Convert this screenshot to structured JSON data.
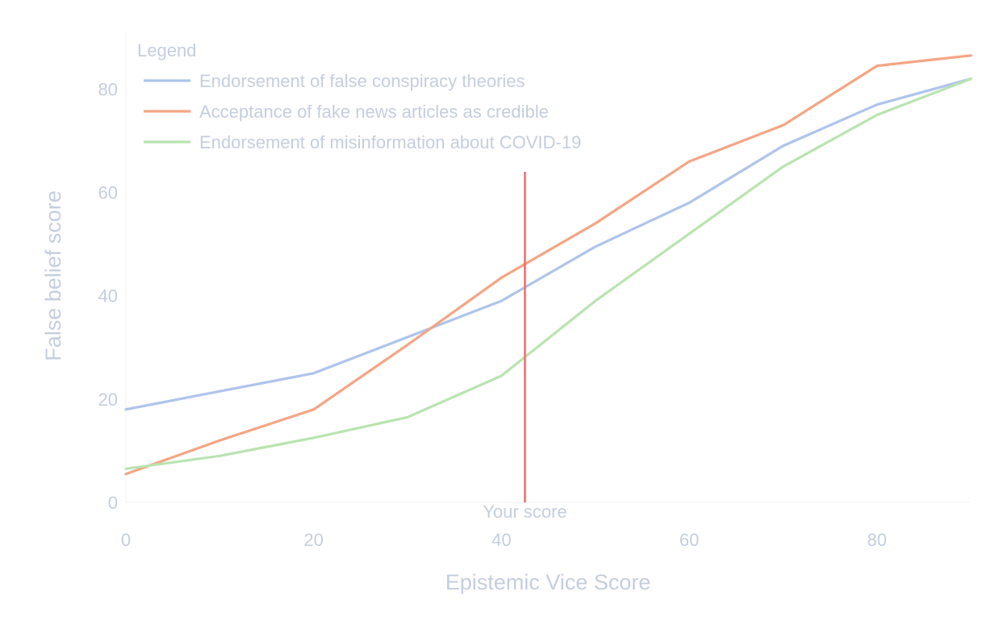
{
  "chart_data": {
    "type": "line",
    "title": "",
    "xlabel": "Epistemic Vice Score",
    "ylabel": "False belief score",
    "xlim": [
      0,
      90
    ],
    "ylim": [
      -5,
      91
    ],
    "x_ticks": [
      0,
      20,
      40,
      60,
      80
    ],
    "y_ticks": [
      0,
      20,
      40,
      60,
      80
    ],
    "grid": false,
    "legend": {
      "title": "Legend",
      "placement": "top-left"
    },
    "x": [
      0,
      10,
      20,
      30,
      40,
      50,
      60,
      70,
      80,
      90
    ],
    "series": [
      {
        "name": "Endorsement of false conspiracy theories",
        "color": "#aec4ec",
        "values": [
          18,
          21.5,
          25,
          32,
          39,
          49.5,
          58,
          69,
          77,
          82
        ]
      },
      {
        "name": "Acceptance of fake news articles as credible",
        "color": "#f4a584",
        "values": [
          5.5,
          12,
          18,
          30.5,
          43.5,
          54,
          66,
          73,
          84.5,
          86.5
        ]
      },
      {
        "name": "Endorsement of misinformation about COVID-19",
        "color": "#b9e4b0",
        "values": [
          6.5,
          9,
          12.5,
          16.5,
          24.5,
          39,
          52,
          65,
          75,
          82
        ]
      }
    ],
    "marker_line": {
      "x": 42.5,
      "y_top": 64,
      "label": "Your score",
      "color": "#f26a6a"
    }
  }
}
